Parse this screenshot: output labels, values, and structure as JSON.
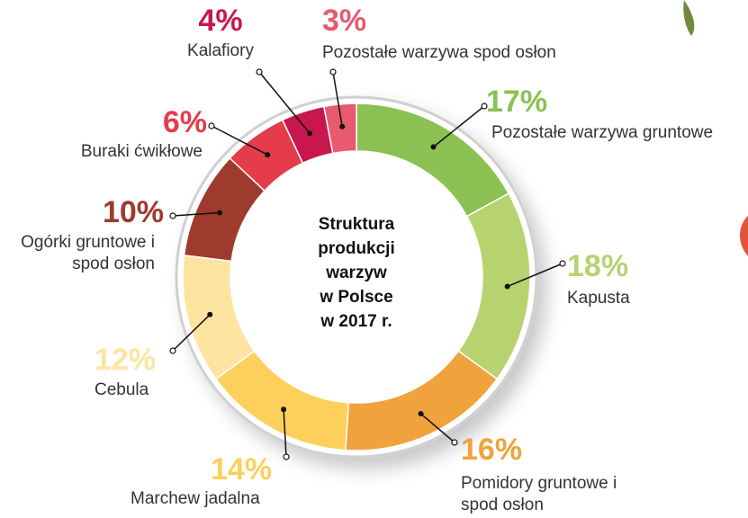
{
  "chart_data": {
    "type": "donut",
    "title": [
      "Struktura",
      "produkcji",
      "warzyw",
      "w Polsce",
      "w 2017 r."
    ],
    "categories": [
      "Pozostałe warzywa gruntowe",
      "Kapusta",
      "Pomidory gruntowe i spod osłon",
      "Marchew jadalna",
      "Cebula",
      "Ogórki gruntowe i spod osłon",
      "Buraki ćwikłowe",
      "Kalafiory",
      "Pozostałe warzywa spod osłon"
    ],
    "values": [
      17,
      18,
      16,
      14,
      12,
      10,
      6,
      4,
      3
    ],
    "value_labels": [
      "17%",
      "18%",
      "16%",
      "14%",
      "12%",
      "10%",
      "6%",
      "4%",
      "3%"
    ],
    "colors": [
      "#8bc152",
      "#b6d36f",
      "#f0a23c",
      "#fcd05a",
      "#fde4a0",
      "#9e3b2e",
      "#e43c4a",
      "#c8174f",
      "#e85a6e"
    ]
  }
}
